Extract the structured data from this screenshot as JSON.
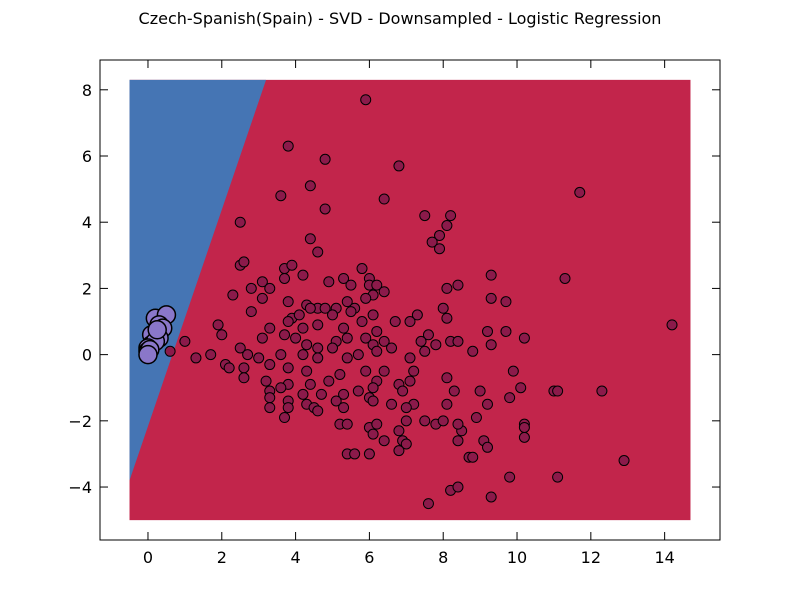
{
  "chart_data": {
    "type": "scatter",
    "title": "Czech-Spanish(Spain) - SVD - Downsampled - Logistic Regression",
    "xlabel": "",
    "ylabel": "",
    "xlim": [
      -1.3,
      15.5
    ],
    "ylim": [
      -5.6,
      8.9
    ],
    "grid": false,
    "legend": "none",
    "xticks": [
      0,
      2,
      4,
      6,
      8,
      10,
      12,
      14
    ],
    "yticks": [
      -4,
      -2,
      0,
      2,
      4,
      6,
      8
    ],
    "xtick_labels": [
      "0",
      "2",
      "4",
      "6",
      "8",
      "10",
      "12",
      "14"
    ],
    "ytick_labels": [
      "−4",
      "−2",
      "0",
      "2",
      "4",
      "6",
      "8"
    ],
    "decision_regions": {
      "x_range": [
        -0.5,
        14.7
      ],
      "y_range": [
        -5.0,
        8.3
      ],
      "boundary": [
        [
          -0.5,
          -3.8
        ],
        [
          3.2,
          8.3
        ]
      ],
      "left_class_color": "#4575b4",
      "right_class_color": "#c2254b"
    },
    "series": [
      {
        "color": "#8b1a4a",
        "marker_size": "small",
        "points": [
          [
            5.9,
            7.7
          ],
          [
            3.8,
            6.3
          ],
          [
            4.8,
            5.9
          ],
          [
            6.8,
            5.7
          ],
          [
            4.4,
            5.1
          ],
          [
            3.6,
            4.8
          ],
          [
            6.4,
            4.7
          ],
          [
            11.7,
            4.9
          ],
          [
            4.8,
            4.4
          ],
          [
            7.5,
            4.2
          ],
          [
            8.2,
            4.2
          ],
          [
            2.5,
            4.0
          ],
          [
            8.1,
            3.9
          ],
          [
            7.9,
            3.6
          ],
          [
            4.4,
            3.5
          ],
          [
            7.7,
            3.4
          ],
          [
            4.6,
            3.1
          ],
          [
            7.9,
            3.2
          ],
          [
            2.5,
            2.7
          ],
          [
            2.6,
            2.8
          ],
          [
            3.7,
            2.6
          ],
          [
            3.9,
            2.7
          ],
          [
            4.2,
            2.4
          ],
          [
            5.3,
            2.3
          ],
          [
            5.8,
            2.6
          ],
          [
            6.0,
            2.3
          ],
          [
            9.3,
            2.4
          ],
          [
            11.3,
            2.3
          ],
          [
            3.1,
            2.2
          ],
          [
            3.3,
            2.0
          ],
          [
            4.9,
            2.2
          ],
          [
            6.0,
            2.1
          ],
          [
            6.2,
            2.1
          ],
          [
            8.4,
            2.1
          ],
          [
            8.1,
            2.0
          ],
          [
            2.8,
            2.0
          ],
          [
            2.3,
            1.8
          ],
          [
            3.1,
            1.7
          ],
          [
            3.7,
            2.3
          ],
          [
            5.5,
            2.1
          ],
          [
            6.1,
            1.8
          ],
          [
            6.4,
            1.9
          ],
          [
            3.8,
            1.6
          ],
          [
            4.3,
            1.5
          ],
          [
            4.6,
            1.4
          ],
          [
            4.8,
            1.4
          ],
          [
            5.4,
            1.6
          ],
          [
            5.6,
            1.4
          ],
          [
            5.9,
            1.7
          ],
          [
            9.3,
            1.7
          ],
          [
            9.7,
            1.6
          ],
          [
            8.0,
            1.4
          ],
          [
            2.8,
            1.3
          ],
          [
            3.9,
            1.1
          ],
          [
            4.1,
            1.2
          ],
          [
            4.4,
            1.4
          ],
          [
            5.1,
            1.4
          ],
          [
            5.5,
            1.3
          ],
          [
            6.1,
            1.2
          ],
          [
            7.3,
            1.2
          ],
          [
            8.1,
            1.1
          ],
          [
            1.9,
            0.9
          ],
          [
            3.3,
            0.8
          ],
          [
            3.8,
            1.0
          ],
          [
            4.2,
            0.8
          ],
          [
            4.6,
            0.9
          ],
          [
            5.0,
            1.2
          ],
          [
            5.3,
            0.8
          ],
          [
            5.8,
            1.0
          ],
          [
            6.2,
            0.7
          ],
          [
            6.7,
            1.0
          ],
          [
            7.1,
            1.0
          ],
          [
            7.6,
            0.6
          ],
          [
            9.2,
            0.7
          ],
          [
            9.7,
            0.7
          ],
          [
            10.2,
            0.5
          ],
          [
            1.0,
            0.4
          ],
          [
            2.0,
            0.6
          ],
          [
            2.5,
            0.2
          ],
          [
            3.1,
            0.5
          ],
          [
            3.7,
            0.6
          ],
          [
            4.0,
            0.5
          ],
          [
            4.3,
            0.3
          ],
          [
            4.6,
            0.2
          ],
          [
            5.1,
            0.4
          ],
          [
            5.4,
            0.5
          ],
          [
            5.9,
            0.5
          ],
          [
            6.1,
            0.3
          ],
          [
            6.4,
            0.4
          ],
          [
            7.4,
            0.4
          ],
          [
            7.8,
            0.3
          ],
          [
            8.2,
            0.4
          ],
          [
            8.4,
            0.4
          ],
          [
            9.3,
            0.3
          ],
          [
            1.3,
            -0.1
          ],
          [
            1.7,
            0.0
          ],
          [
            2.1,
            -0.3
          ],
          [
            2.7,
            0.0
          ],
          [
            3.0,
            -0.1
          ],
          [
            3.6,
            0.0
          ],
          [
            4.2,
            0.0
          ],
          [
            4.6,
            -0.1
          ],
          [
            5.0,
            0.2
          ],
          [
            5.4,
            -0.1
          ],
          [
            5.7,
            0.0
          ],
          [
            6.2,
            0.1
          ],
          [
            6.6,
            0.2
          ],
          [
            7.1,
            -0.1
          ],
          [
            7.5,
            0.1
          ],
          [
            8.8,
            0.1
          ],
          [
            2.2,
            -0.4
          ],
          [
            2.6,
            -0.4
          ],
          [
            3.3,
            -0.3
          ],
          [
            3.8,
            -0.4
          ],
          [
            4.3,
            -0.5
          ],
          [
            5.2,
            -0.6
          ],
          [
            5.9,
            -0.5
          ],
          [
            6.4,
            -0.5
          ],
          [
            7.2,
            -0.5
          ],
          [
            8.1,
            -0.7
          ],
          [
            9.9,
            -0.5
          ],
          [
            2.6,
            -0.7
          ],
          [
            3.2,
            -0.8
          ],
          [
            3.8,
            -0.9
          ],
          [
            4.4,
            -0.9
          ],
          [
            4.9,
            -0.8
          ],
          [
            6.2,
            -0.8
          ],
          [
            6.8,
            -0.9
          ],
          [
            7.1,
            -0.8
          ],
          [
            3.3,
            -1.1
          ],
          [
            3.6,
            -1.0
          ],
          [
            4.2,
            -1.2
          ],
          [
            4.7,
            -1.2
          ],
          [
            5.3,
            -1.2
          ],
          [
            5.7,
            -1.1
          ],
          [
            6.1,
            -1.0
          ],
          [
            6.9,
            -1.1
          ],
          [
            8.3,
            -1.1
          ],
          [
            9.0,
            -1.1
          ],
          [
            10.1,
            -1.0
          ],
          [
            11.0,
            -1.1
          ],
          [
            11.1,
            -1.1
          ],
          [
            12.3,
            -1.1
          ],
          [
            3.3,
            -1.3
          ],
          [
            3.8,
            -1.4
          ],
          [
            4.3,
            -1.5
          ],
          [
            5.1,
            -1.4
          ],
          [
            6.0,
            -1.3
          ],
          [
            6.6,
            -1.5
          ],
          [
            7.2,
            -1.5
          ],
          [
            8.1,
            -1.5
          ],
          [
            9.2,
            -1.5
          ],
          [
            9.8,
            -1.3
          ],
          [
            3.3,
            -1.6
          ],
          [
            3.8,
            -1.6
          ],
          [
            4.5,
            -1.6
          ],
          [
            4.6,
            -1.7
          ],
          [
            5.3,
            -1.6
          ],
          [
            6.1,
            -1.4
          ],
          [
            7.0,
            -1.6
          ],
          [
            8.5,
            -2.3
          ],
          [
            8.9,
            -1.9
          ],
          [
            3.7,
            -1.9
          ],
          [
            5.2,
            -2.1
          ],
          [
            5.4,
            -2.1
          ],
          [
            6.0,
            -2.2
          ],
          [
            6.2,
            -2.1
          ],
          [
            6.8,
            -2.3
          ],
          [
            7.0,
            -2.0
          ],
          [
            7.5,
            -2.0
          ],
          [
            7.8,
            -2.1
          ],
          [
            8.0,
            -2.0
          ],
          [
            8.4,
            -2.1
          ],
          [
            6.1,
            -2.4
          ],
          [
            6.4,
            -2.6
          ],
          [
            6.9,
            -2.6
          ],
          [
            7.0,
            -2.7
          ],
          [
            8.4,
            -2.6
          ],
          [
            9.1,
            -2.6
          ],
          [
            9.2,
            -2.8
          ],
          [
            10.2,
            -2.1
          ],
          [
            10.2,
            -2.5
          ],
          [
            10.2,
            -2.2
          ],
          [
            6.8,
            -2.9
          ],
          [
            5.4,
            -3.0
          ],
          [
            5.6,
            -3.0
          ],
          [
            6.0,
            -3.0
          ],
          [
            8.7,
            -3.1
          ],
          [
            8.8,
            -3.1
          ],
          [
            12.9,
            -3.2
          ],
          [
            9.8,
            -3.7
          ],
          [
            11.1,
            -3.7
          ],
          [
            8.2,
            -4.1
          ],
          [
            8.4,
            -4.0
          ],
          [
            9.3,
            -4.3
          ],
          [
            7.6,
            -4.5
          ],
          [
            14.2,
            0.9
          ],
          [
            0.6,
            0.1
          ]
        ]
      },
      {
        "color": "#8a77c9",
        "marker_size": "large",
        "points": [
          [
            0.2,
            1.1
          ],
          [
            0.5,
            1.2
          ],
          [
            0.3,
            0.9
          ],
          [
            0.4,
            0.8
          ],
          [
            0.1,
            0.6
          ],
          [
            0.3,
            0.5
          ],
          [
            0.1,
            0.3
          ],
          [
            0.2,
            0.4
          ],
          [
            0.0,
            0.2
          ],
          [
            0.0,
            0.1
          ],
          [
            0.05,
            0.15
          ],
          [
            0.0,
            0.0
          ],
          [
            0.25,
            0.75
          ]
        ]
      }
    ]
  }
}
